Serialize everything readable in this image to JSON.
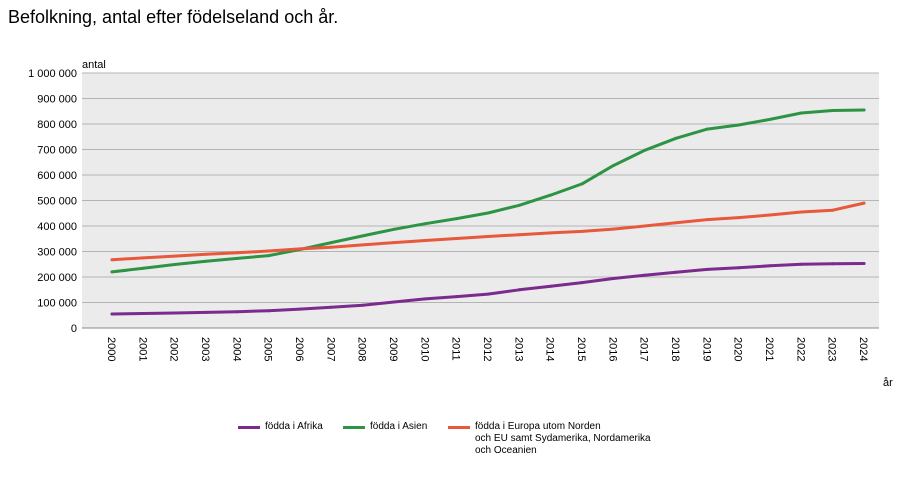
{
  "chart_data": {
    "type": "line",
    "title": "Befolkning, antal efter födelseland och år.",
    "xlabel": "år",
    "ylabel": "antal",
    "ylim": [
      0,
      1000000
    ],
    "yticks": [
      "0",
      "100 000",
      "200 000",
      "300 000",
      "400 000",
      "500 000",
      "600 000",
      "700 000",
      "800 000",
      "900 000",
      "1 000 000"
    ],
    "yticks_values": [
      0,
      100000,
      200000,
      300000,
      400000,
      500000,
      600000,
      700000,
      800000,
      900000,
      1000000
    ],
    "grid": true,
    "legend_position": "bottom",
    "x": [
      "2000",
      "2001",
      "2002",
      "2003",
      "2004",
      "2005",
      "2006",
      "2007",
      "2008",
      "2009",
      "2010",
      "2011",
      "2012",
      "2013",
      "2014",
      "2015",
      "2016",
      "2017",
      "2018",
      "2019",
      "2020",
      "2021",
      "2022",
      "2023",
      "2024"
    ],
    "series": [
      {
        "name": "födda i Afrika",
        "color": "#7b2a8e",
        "values": [
          55000,
          57000,
          59000,
          61000,
          64000,
          68000,
          74000,
          81000,
          89000,
          102000,
          114000,
          123000,
          133000,
          150000,
          164000,
          178000,
          194000,
          207000,
          219000,
          230000,
          236000,
          244000,
          250000,
          252000,
          253000
        ]
      },
      {
        "name": "födda i Asien",
        "color": "#2e9444",
        "values": [
          220000,
          234000,
          249000,
          262000,
          273000,
          284000,
          308000,
          335000,
          361000,
          387000,
          409000,
          429000,
          451000,
          481000,
          521000,
          565000,
          637000,
          697000,
          744000,
          780000,
          796000,
          818000,
          843000,
          853000,
          855000
        ]
      },
      {
        "name": "födda i Europa utom Norden och EU samt Sydamerika, Nordamerika och Oceanien",
        "color": "#e8583a",
        "values": [
          268000,
          275000,
          282000,
          289000,
          295000,
          302000,
          310000,
          317000,
          326000,
          335000,
          343000,
          351000,
          359000,
          366000,
          373000,
          379000,
          388000,
          400000,
          413000,
          425000,
          433000,
          443000,
          455000,
          462000,
          490000
        ]
      }
    ]
  },
  "legend": [
    {
      "label": "födda i Afrika",
      "color": "#7b2a8e"
    },
    {
      "label": "födda i Asien",
      "color": "#2e9444"
    },
    {
      "label": "födda i Europa utom Norden\noch EU samt Sydamerika, Nordamerika\noch Oceanien",
      "color": "#e8583a"
    }
  ]
}
